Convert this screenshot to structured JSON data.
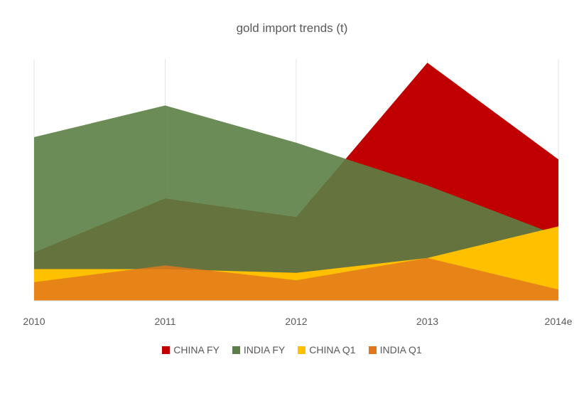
{
  "chart_data": {
    "type": "area",
    "title": "gold import trends (t)",
    "xlabel": "",
    "ylabel": "",
    "categories": [
      "2010",
      "2011",
      "2012",
      "2013",
      "2014e"
    ],
    "ylim": [
      0,
      1300
    ],
    "grid": "vertical",
    "legend_position": "bottom",
    "series": [
      {
        "name": "CHINA FY",
        "values": [
          260,
          550,
          450,
          1280,
          760
        ],
        "color": "#c00000"
      },
      {
        "name": "INDIA FY",
        "values": [
          880,
          1050,
          850,
          620,
          350
        ],
        "color": "#5b7f45"
      },
      {
        "name": "CHINA Q1",
        "values": [
          170,
          170,
          150,
          230,
          400
        ],
        "color": "#ffc000"
      },
      {
        "name": "INDIA Q1",
        "values": [
          100,
          190,
          110,
          230,
          60
        ],
        "color": "#e1761d"
      }
    ]
  }
}
